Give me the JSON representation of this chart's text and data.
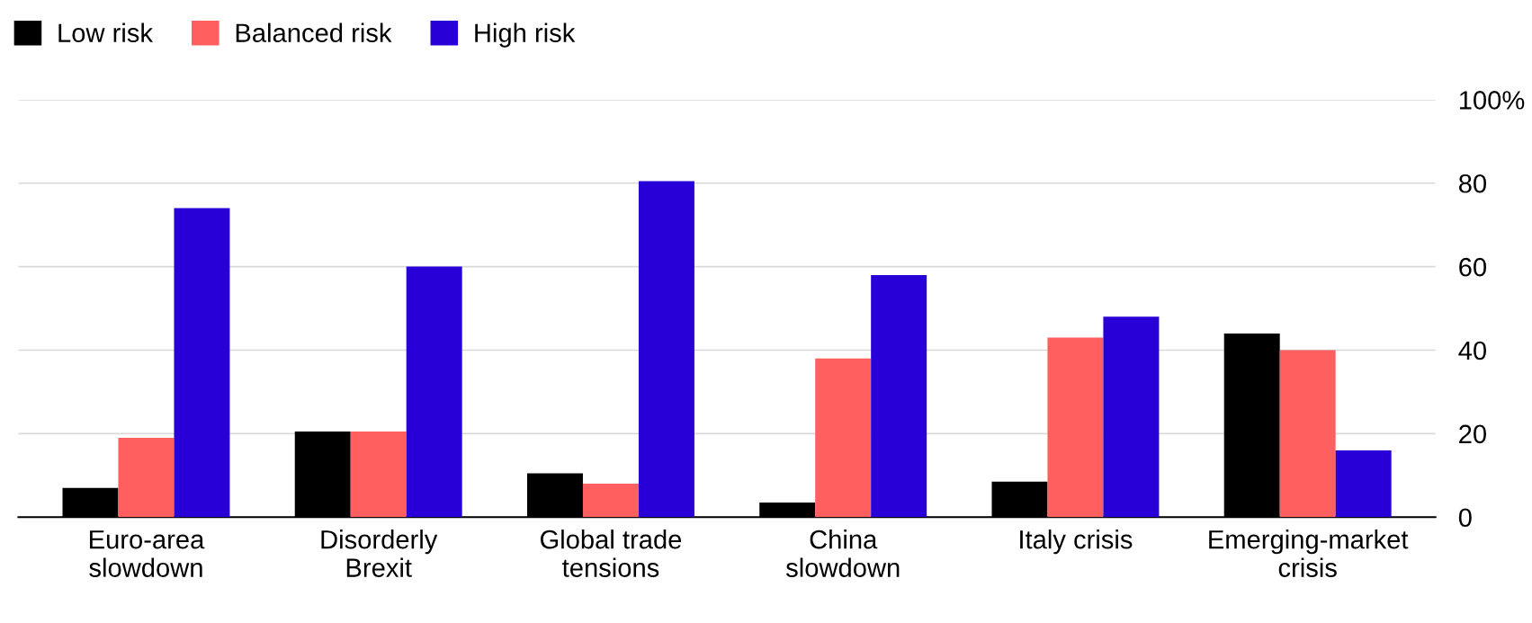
{
  "chart_data": {
    "type": "bar",
    "categories": [
      "Euro-area\nslowdown",
      "Disorderly\nBrexit",
      "Global trade\ntensions",
      "China\nslowdown",
      "Italy crisis",
      "Emerging-market\ncrisis"
    ],
    "series": [
      {
        "name": "Low risk",
        "color": "#000000",
        "values": [
          7,
          20.5,
          10.5,
          3.5,
          8.5,
          44
        ]
      },
      {
        "name": "Balanced risk",
        "color": "#ff5f5f",
        "values": [
          19,
          20.5,
          8,
          38,
          43,
          40
        ]
      },
      {
        "name": "High risk",
        "color": "#2800d7",
        "values": [
          74,
          60,
          80.5,
          58,
          48,
          16
        ]
      }
    ],
    "ylim": [
      0,
      100
    ],
    "yticks": [
      0,
      20,
      40,
      60,
      {
        "value": 80,
        "label": "80"
      },
      {
        "value": 100,
        "label": "100%"
      }
    ],
    "grid": "y",
    "legend": "top left"
  }
}
